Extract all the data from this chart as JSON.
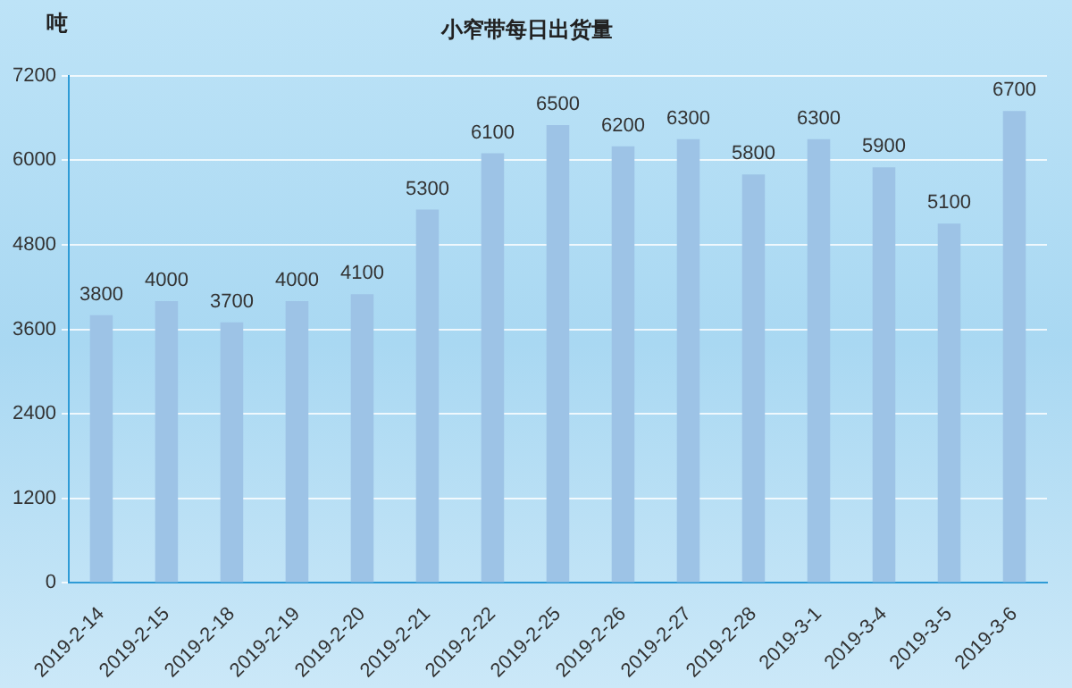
{
  "chart_data": {
    "type": "bar",
    "title": "小窄带每日出货量",
    "ylabel": "吨",
    "categories": [
      "2019-2-14",
      "2019-2-15",
      "2019-2-18",
      "2019-2-19",
      "2019-2-20",
      "2019-2-21",
      "2019-2-22",
      "2019-2-25",
      "2019-2-26",
      "2019-2-27",
      "2019-2-28",
      "2019-3-1",
      "2019-3-4",
      "2019-3-5",
      "2019-3-6"
    ],
    "values": [
      3800,
      4000,
      3700,
      4000,
      4100,
      5300,
      6100,
      6500,
      6200,
      6300,
      5800,
      6300,
      5900,
      5100,
      6700
    ],
    "color": "#9dc3e6",
    "ylim": [
      0,
      7200
    ],
    "yticks": [
      0,
      1200,
      2400,
      3600,
      4800,
      6000,
      7200
    ],
    "grid": "y",
    "data_labels": true,
    "legend": false
  }
}
